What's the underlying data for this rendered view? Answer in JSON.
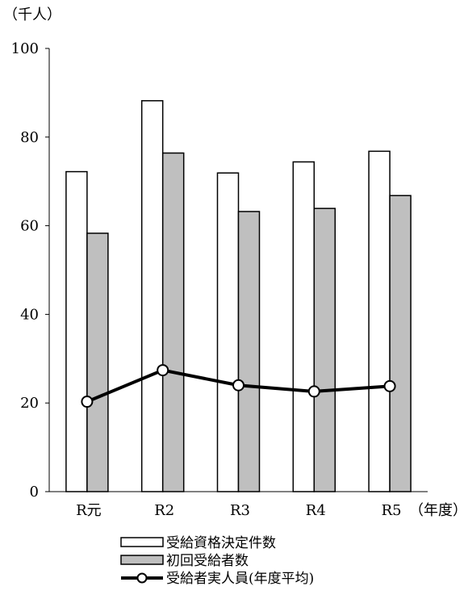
{
  "chart_data": {
    "type": "bar",
    "unit_label": "（千人）",
    "x_unit_label": "（年度）",
    "categories": [
      "R元",
      "R2",
      "R3",
      "R4",
      "R5"
    ],
    "ylim": [
      0,
      100
    ],
    "yticks": [
      0,
      20,
      40,
      60,
      80,
      100
    ],
    "grid": false,
    "legend_position": "bottom",
    "series": [
      {
        "name": "受給資格決定件数",
        "kind": "bar",
        "fill": "#ffffff",
        "stroke": "#000000",
        "values": [
          72.2,
          88.2,
          71.9,
          74.4,
          76.8
        ]
      },
      {
        "name": "初回受給者数",
        "kind": "bar",
        "fill": "#bfbfbf",
        "stroke": "#000000",
        "values": [
          58.3,
          76.4,
          63.2,
          63.9,
          66.8
        ]
      },
      {
        "name": "受給者実人員(年度平均)",
        "kind": "line",
        "stroke": "#000000",
        "marker_fill": "#ffffff",
        "values": [
          20.3,
          27.4,
          24.0,
          22.6,
          23.8
        ]
      }
    ]
  }
}
